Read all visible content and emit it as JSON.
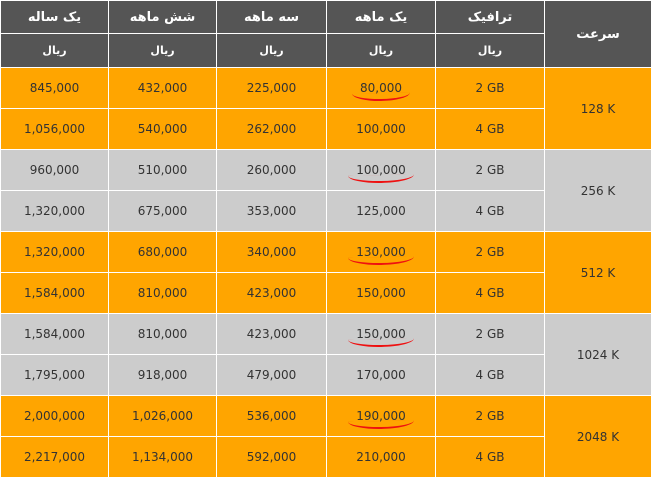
{
  "header": {
    "speed": "سرعت",
    "traffic": "ترافیک",
    "one_month": "یک ماهه",
    "three_month": "سه ماهه",
    "six_month": "شش ماهه",
    "one_year": "یک ساله",
    "traffic_unit": "ریال",
    "one_month_unit": "ریال",
    "three_month_unit": "ریال",
    "six_month_unit": "ریال",
    "one_year_unit": "ریال"
  },
  "groups": [
    {
      "speed": "128 K",
      "rows": [
        {
          "traffic": "2 GB",
          "one_month": "80,000",
          "three_month": "225,000",
          "six_month": "432,000",
          "one_year": "845,000"
        },
        {
          "traffic": "4 GB",
          "one_month": "100,000",
          "three_month": "262,000",
          "six_month": "540,000",
          "one_year": "1,056,000"
        }
      ]
    },
    {
      "speed": "256 K",
      "rows": [
        {
          "traffic": "2 GB",
          "one_month": "100,000",
          "three_month": "260,000",
          "six_month": "510,000",
          "one_year": "960,000"
        },
        {
          "traffic": "4 GB",
          "one_month": "125,000",
          "three_month": "353,000",
          "six_month": "675,000",
          "one_year": "1,320,000"
        }
      ]
    },
    {
      "speed": "512 K",
      "rows": [
        {
          "traffic": "2 GB",
          "one_month": "130,000",
          "three_month": "340,000",
          "six_month": "680,000",
          "one_year": "1,320,000"
        },
        {
          "traffic": "4 GB",
          "one_month": "150,000",
          "three_month": "423,000",
          "six_month": "810,000",
          "one_year": "1,584,000"
        }
      ]
    },
    {
      "speed": "1024 K",
      "rows": [
        {
          "traffic": "2 GB",
          "one_month": "150,000",
          "three_month": "423,000",
          "six_month": "810,000",
          "one_year": "1,584,000"
        },
        {
          "traffic": "4 GB",
          "one_month": "170,000",
          "three_month": "479,000",
          "six_month": "918,000",
          "one_year": "1,795,000"
        }
      ]
    },
    {
      "speed": "2048 K",
      "rows": [
        {
          "traffic": "2 GB",
          "one_month": "190,000",
          "three_month": "536,000",
          "six_month": "1,026,000",
          "one_year": "2,000,000"
        },
        {
          "traffic": "4 GB",
          "one_month": "210,000",
          "three_month": "592,000",
          "six_month": "1,134,000",
          "one_year": "2,217,000"
        }
      ]
    }
  ],
  "colors": {
    "header_bg": "#555555",
    "orange_row": "#ffa500",
    "gray_row": "#cccccc",
    "highlight_underline": "#ee1111"
  }
}
